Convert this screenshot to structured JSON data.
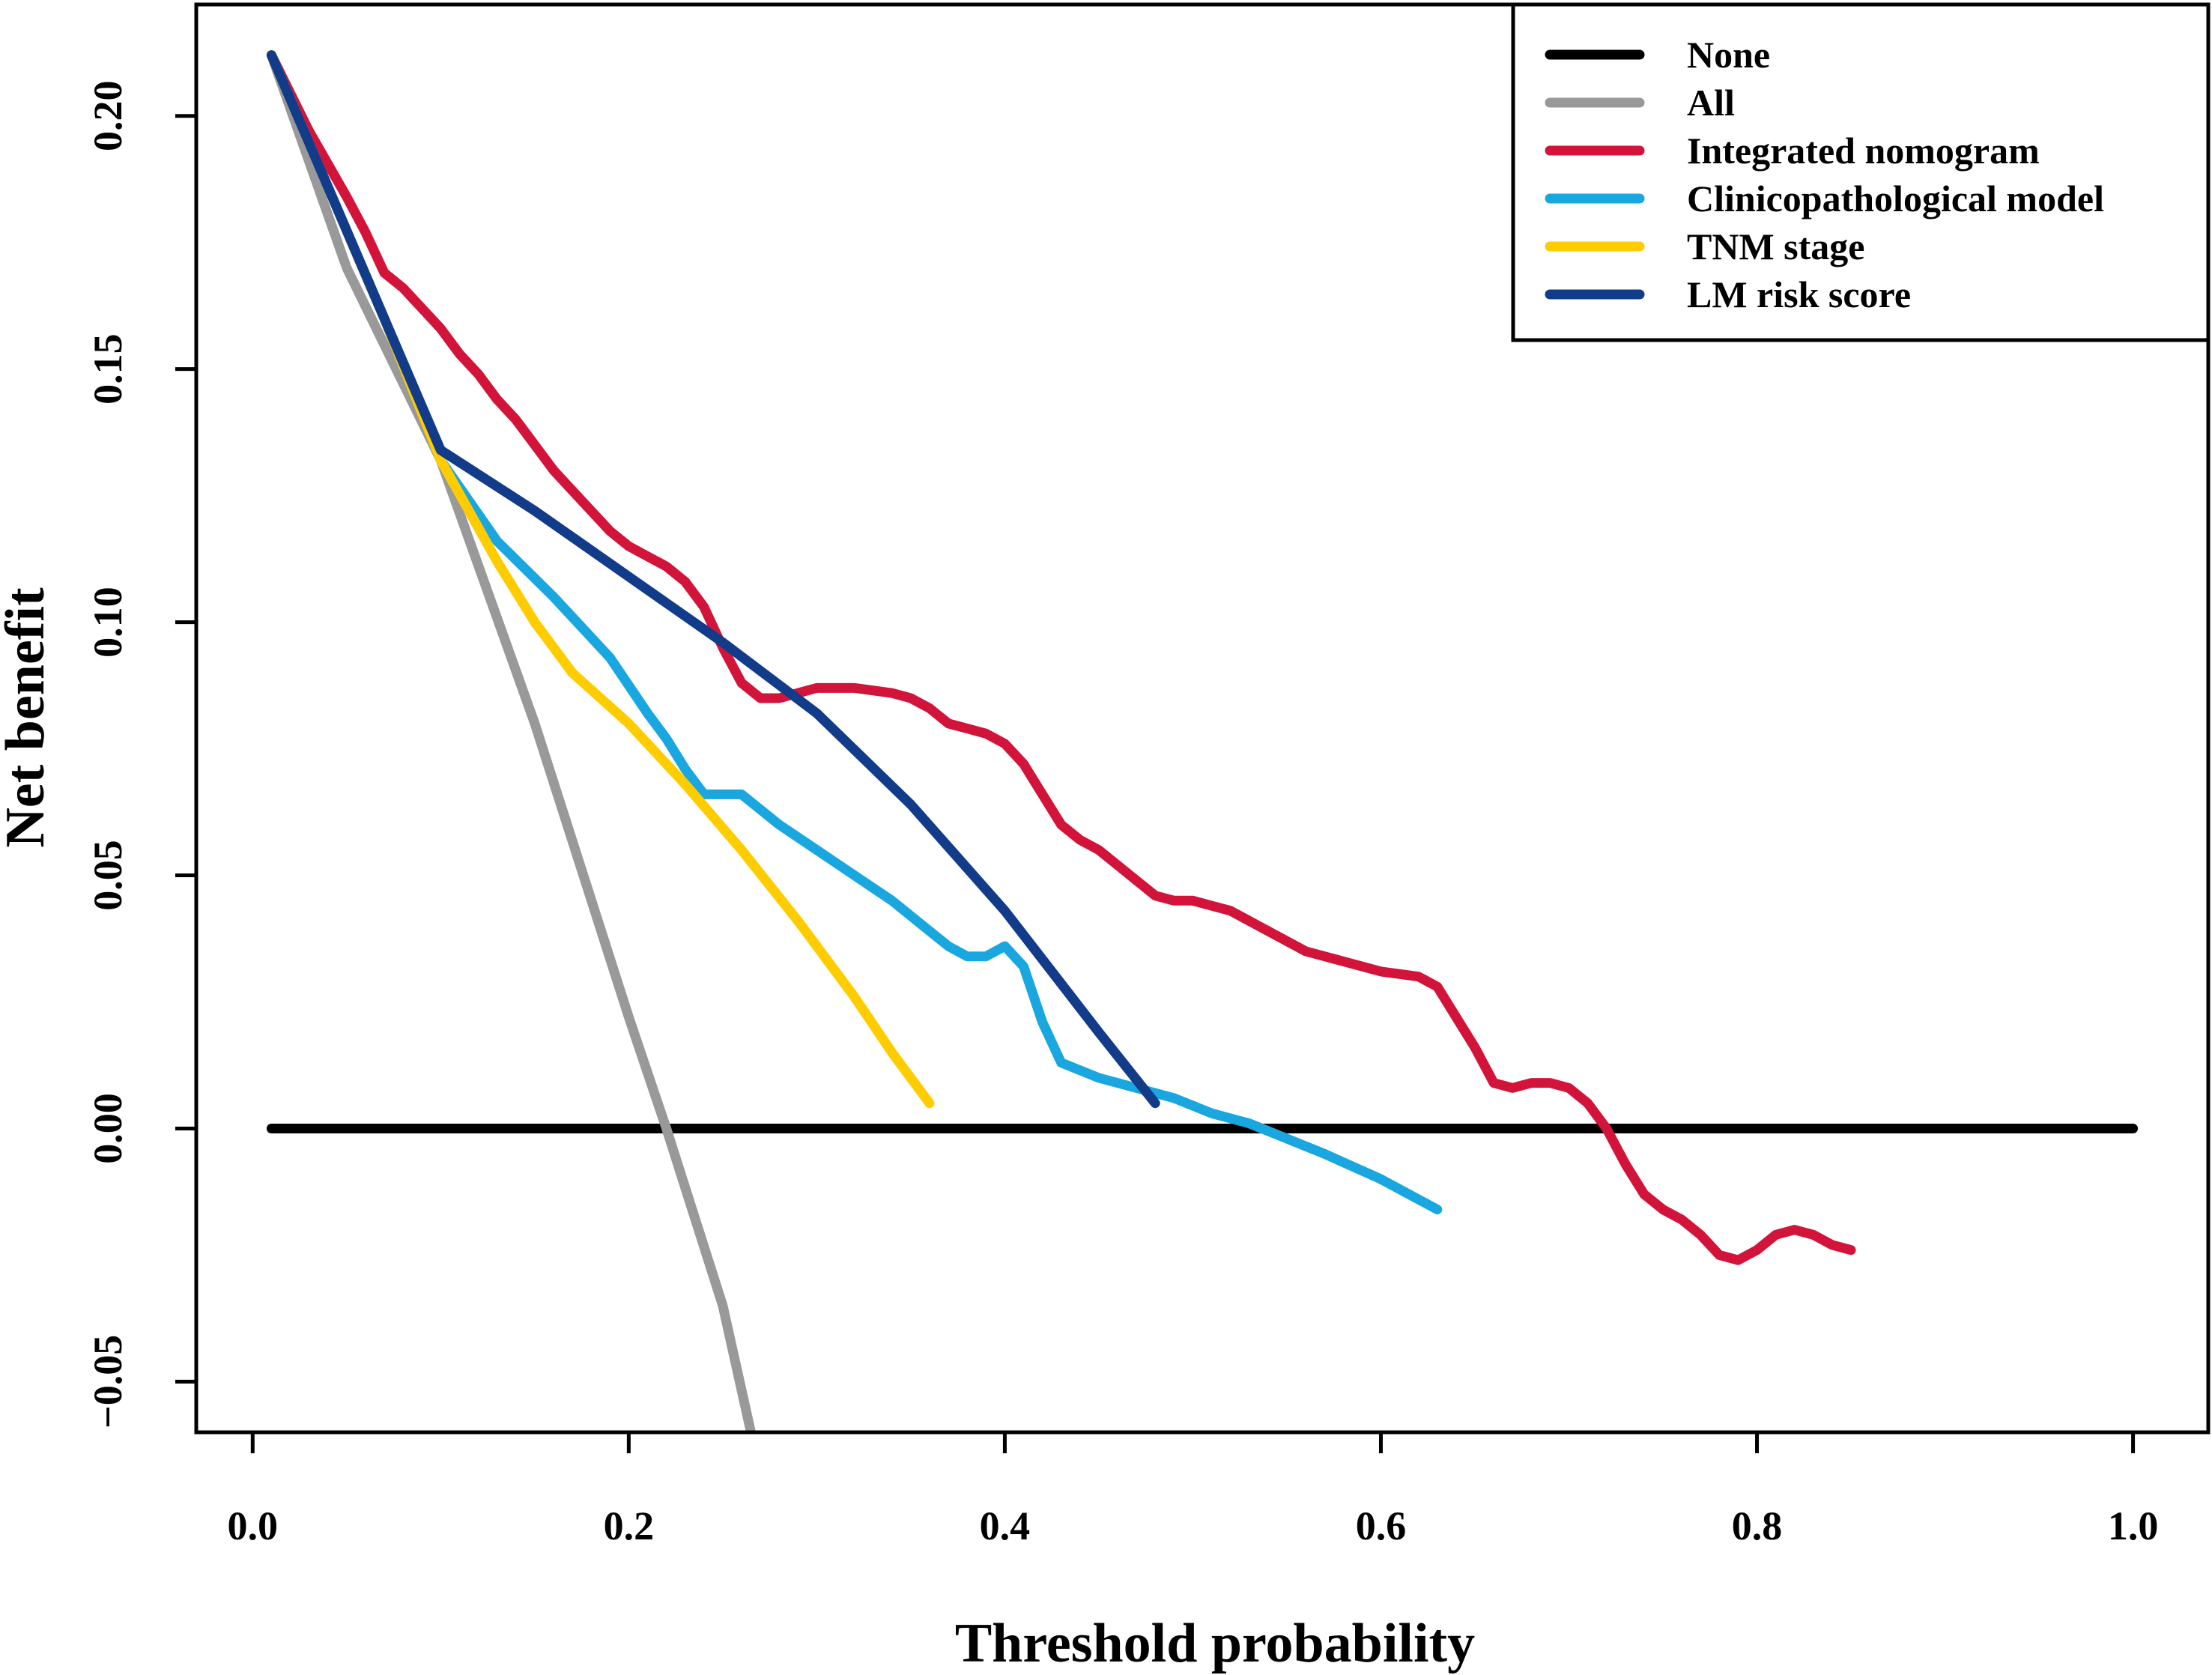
{
  "chart_data": {
    "type": "line",
    "title": "",
    "xlabel": "Threshold probability",
    "ylabel": "Net benefit",
    "xlim": [
      -0.03,
      1.04
    ],
    "ylim": [
      -0.06,
      0.222
    ],
    "xticks": [
      0.0,
      0.2,
      0.4,
      0.6,
      0.8,
      1.0
    ],
    "xtick_labels": [
      "0.0",
      "0.2",
      "0.4",
      "0.6",
      "0.8",
      "1.0"
    ],
    "yticks": [
      -0.05,
      0.0,
      0.05,
      0.1,
      0.15,
      0.2
    ],
    "ytick_labels": [
      "−0.05",
      "0.00",
      "0.05",
      "0.10",
      "0.15",
      "0.20"
    ],
    "grid": false,
    "legend_position": "top-right",
    "series": [
      {
        "name": "None",
        "color": "#000000",
        "x": [
          0.01,
          1.0
        ],
        "y": [
          0.0,
          0.0
        ]
      },
      {
        "name": "All",
        "color": "#999999",
        "x": [
          0.01,
          0.05,
          0.1,
          0.15,
          0.2,
          0.22,
          0.25,
          0.265
        ],
        "y": [
          0.212,
          0.17,
          0.132,
          0.08,
          0.022,
          0.0,
          -0.035,
          -0.06
        ]
      },
      {
        "name": "Integrated nomogram",
        "color": "#D2143A",
        "x": [
          0.01,
          0.03,
          0.05,
          0.06,
          0.07,
          0.08,
          0.09,
          0.1,
          0.11,
          0.12,
          0.13,
          0.14,
          0.15,
          0.16,
          0.17,
          0.18,
          0.19,
          0.2,
          0.21,
          0.22,
          0.23,
          0.24,
          0.25,
          0.26,
          0.27,
          0.28,
          0.29,
          0.3,
          0.32,
          0.34,
          0.35,
          0.36,
          0.37,
          0.38,
          0.39,
          0.4,
          0.41,
          0.42,
          0.43,
          0.44,
          0.45,
          0.46,
          0.47,
          0.48,
          0.49,
          0.5,
          0.51,
          0.52,
          0.53,
          0.54,
          0.56,
          0.58,
          0.6,
          0.62,
          0.63,
          0.64,
          0.65,
          0.66,
          0.67,
          0.68,
          0.69,
          0.7,
          0.71,
          0.72,
          0.73,
          0.74,
          0.75,
          0.76,
          0.77,
          0.78,
          0.79,
          0.8,
          0.81,
          0.82,
          0.83,
          0.84,
          0.85
        ],
        "y": [
          0.212,
          0.197,
          0.184,
          0.177,
          0.169,
          0.166,
          0.162,
          0.158,
          0.153,
          0.149,
          0.144,
          0.14,
          0.135,
          0.13,
          0.126,
          0.122,
          0.118,
          0.115,
          0.113,
          0.111,
          0.108,
          0.103,
          0.095,
          0.088,
          0.085,
          0.085,
          0.086,
          0.087,
          0.087,
          0.086,
          0.085,
          0.083,
          0.08,
          0.079,
          0.078,
          0.076,
          0.072,
          0.066,
          0.06,
          0.057,
          0.055,
          0.052,
          0.049,
          0.046,
          0.045,
          0.045,
          0.044,
          0.043,
          0.041,
          0.039,
          0.035,
          0.033,
          0.031,
          0.03,
          0.028,
          0.022,
          0.016,
          0.009,
          0.008,
          0.009,
          0.009,
          0.008,
          0.005,
          0.0,
          -0.007,
          -0.013,
          -0.016,
          -0.018,
          -0.021,
          -0.025,
          -0.026,
          -0.024,
          -0.021,
          -0.02,
          -0.021,
          -0.023,
          -0.024
        ]
      },
      {
        "name": "Clinicopathological model",
        "color": "#1AA7E0",
        "x": [
          0.01,
          0.04,
          0.07,
          0.1,
          0.13,
          0.16,
          0.19,
          0.21,
          0.22,
          0.23,
          0.24,
          0.25,
          0.26,
          0.28,
          0.3,
          0.32,
          0.34,
          0.36,
          0.37,
          0.38,
          0.39,
          0.4,
          0.41,
          0.42,
          0.43,
          0.45,
          0.47,
          0.49,
          0.51,
          0.53,
          0.55,
          0.57,
          0.6,
          0.63
        ],
        "y": [
          0.212,
          0.186,
          0.16,
          0.132,
          0.116,
          0.105,
          0.093,
          0.082,
          0.077,
          0.071,
          0.066,
          0.066,
          0.066,
          0.06,
          0.055,
          0.05,
          0.045,
          0.039,
          0.036,
          0.034,
          0.034,
          0.036,
          0.032,
          0.021,
          0.013,
          0.01,
          0.008,
          0.006,
          0.003,
          0.001,
          -0.002,
          -0.005,
          -0.01,
          -0.016
        ]
      },
      {
        "name": "TNM stage",
        "color": "#FFCC00",
        "x": [
          0.01,
          0.04,
          0.07,
          0.1,
          0.13,
          0.15,
          0.17,
          0.2,
          0.23,
          0.26,
          0.29,
          0.32,
          0.34,
          0.36
        ],
        "y": [
          0.212,
          0.186,
          0.16,
          0.132,
          0.112,
          0.1,
          0.09,
          0.08,
          0.068,
          0.055,
          0.041,
          0.026,
          0.015,
          0.005
        ]
      },
      {
        "name": "LM risk score",
        "color": "#123B8A",
        "x": [
          0.01,
          0.1,
          0.15,
          0.2,
          0.25,
          0.3,
          0.35,
          0.4,
          0.45,
          0.48
        ],
        "y": [
          0.212,
          0.134,
          0.122,
          0.109,
          0.096,
          0.082,
          0.064,
          0.043,
          0.019,
          0.005
        ]
      }
    ]
  }
}
